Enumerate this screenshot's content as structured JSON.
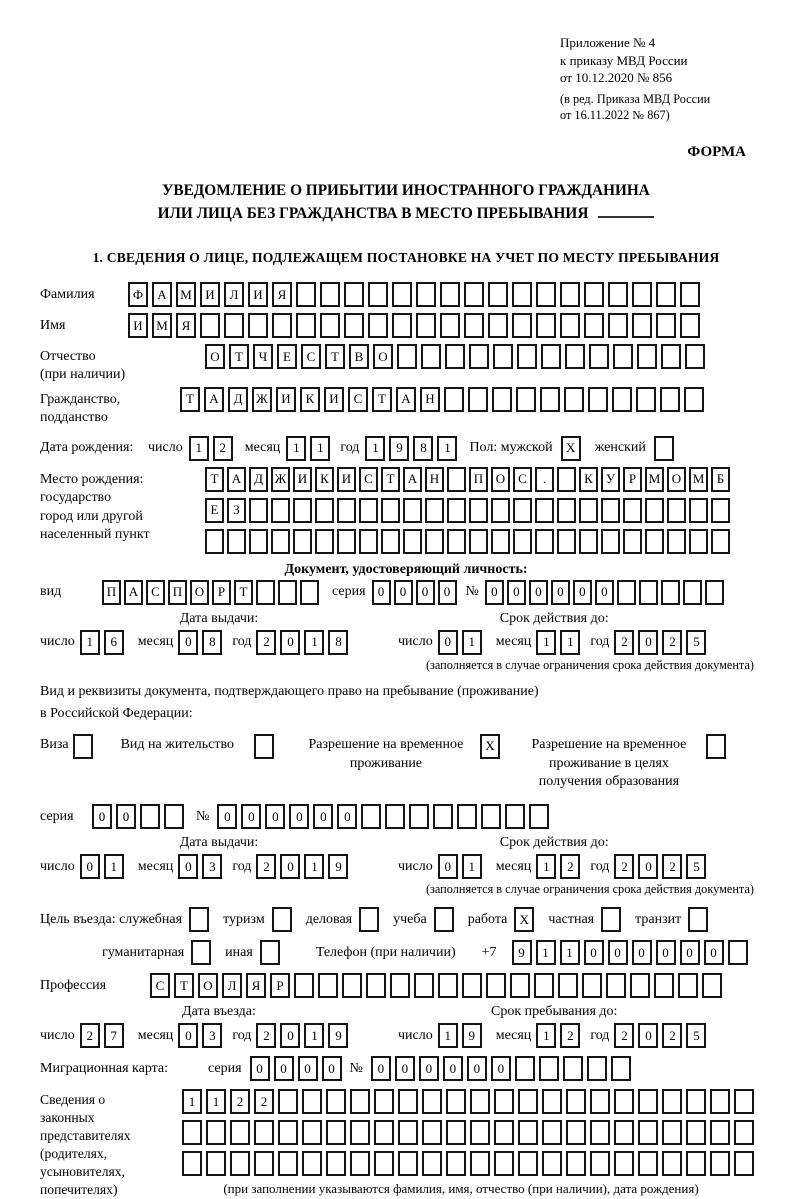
{
  "meta": {
    "annex1": "Приложение № 4",
    "annex2": "к приказу МВД России",
    "annex3": "от 10.12.2020 № 856",
    "note1": "(в ред. Приказа МВД России",
    "note2": "от 16.11.2022 № 867)",
    "forma": "ФОРМА",
    "title1": "УВЕДОМЛЕНИЕ О ПРИБЫТИИ ИНОСТРАННОГО ГРАЖДАНИНА",
    "title2": "ИЛИ ЛИЦА БЕЗ ГРАЖДАНСТВА В МЕСТО ПРЕБЫВАНИЯ",
    "section1": "1. СВЕДЕНИЯ О ЛИЦЕ, ПОДЛЕЖАЩЕМ ПОСТАНОВКЕ НА УЧЕТ ПО МЕСТУ ПРЕБЫВАНИЯ"
  },
  "labels": {
    "surname": "Фамилия",
    "name": "Имя",
    "patronymic_l1": "Отчество",
    "patronymic_l2": "(при наличии)",
    "citizenship_l1": "Гражданство,",
    "citizenship_l2": "подданство",
    "birth_date": "Дата рождения:",
    "day": "число",
    "month": "месяц",
    "year": "год",
    "sex": "Пол: мужской",
    "female": "женский",
    "birthplace_l1": "Место рождения:",
    "birthplace_l2": "государство",
    "birthplace_l3": "город или другой",
    "birthplace_l4": "населенный пункт",
    "id_doc_header": "Документ, удостоверяющий личность:",
    "doc_type": "вид",
    "series": "серия",
    "number": "№",
    "issue_date": "Дата выдачи:",
    "valid_until": "Срок действия до:",
    "limited_note": "(заполняется в случае ограничения срока действия документа)",
    "res_doc_l1": "Вид и реквизиты документа, подтверждающего право на пребывание (проживание)",
    "res_doc_l2": "в Российской Федерации:",
    "visa": "Виза",
    "residence_permit": "Вид на жительство",
    "rvp_l1": "Разрешение на временное",
    "rvp_l2": "проживание",
    "rvp_edu_l1": "Разрешение на временное",
    "rvp_edu_l2": "проживание в целях",
    "rvp_edu_l3": "получения образования",
    "purpose": "Цель въезда: служебная",
    "tourism": "туризм",
    "business": "деловая",
    "study": "учеба",
    "work": "работа",
    "private": "частная",
    "transit": "транзит",
    "humanitarian": "гуманитарная",
    "other": "иная",
    "phone": "Телефон (при наличии)",
    "phone_code": "+7",
    "profession": "Профессия",
    "entry_date": "Дата въезда:",
    "stay_until": "Срок пребывания до:",
    "migration_card": "Миграционная карта:",
    "rep_l1": "Сведения о",
    "rep_l2": "законных",
    "rep_l3": "представителях",
    "rep_l4": "(родителях,",
    "rep_l5": "усыновителях,",
    "rep_l6": "попечителях)",
    "rep_note": "(при заполнении указываются фамилия, имя, отчество (при наличии), дата рождения)"
  },
  "rows": {
    "surname": {
      "chars": "ФАМИЛИЯ",
      "len": 24
    },
    "name": {
      "chars": "ИМЯ",
      "len": 24
    },
    "patronymic": {
      "chars": "ОТЧЕСТВО",
      "len": 21
    },
    "citizenship": {
      "chars": "ТАДЖИКИСТАН",
      "len": 22
    },
    "birth": {
      "day": {
        "chars": "12",
        "len": 2
      },
      "month": {
        "chars": "11",
        "len": 2
      },
      "year": {
        "chars": "1981",
        "len": 4
      }
    },
    "sex_male": {
      "chars": "X",
      "len": 1
    },
    "sex_female": {
      "chars": "",
      "len": 1
    },
    "birthplace_line1": {
      "chars": "ТАДЖИКИСТАН ПОС. КУРМОМБ",
      "len": 24
    },
    "birthplace_line2": {
      "chars": "ЕЗ",
      "len": 24
    },
    "birthplace_line3": {
      "chars": "",
      "len": 24
    },
    "doc_type": {
      "chars": "ПАСПОРТ",
      "len": 10
    },
    "doc_series": {
      "chars": "0000",
      "len": 4
    },
    "doc_number": {
      "chars": "000000",
      "len": 11
    },
    "doc_issue": {
      "day": {
        "chars": "16",
        "len": 2
      },
      "month": {
        "chars": "08",
        "len": 2
      },
      "year": {
        "chars": "2018",
        "len": 4
      }
    },
    "doc_valid": {
      "day": {
        "chars": "01",
        "len": 2
      },
      "month": {
        "chars": "11",
        "len": 2
      },
      "year": {
        "chars": "2025",
        "len": 4
      }
    },
    "cb_visa": {
      "chars": "",
      "len": 1
    },
    "cb_vnzh": {
      "chars": "",
      "len": 1
    },
    "cb_rvp": {
      "chars": "X",
      "len": 1
    },
    "cb_rvp_edu": {
      "chars": "",
      "len": 1
    },
    "res_series": {
      "chars": "00",
      "len": 4
    },
    "res_number": {
      "chars": "000000",
      "len": 14
    },
    "res_issue": {
      "day": {
        "chars": "01",
        "len": 2
      },
      "month": {
        "chars": "03",
        "len": 2
      },
      "year": {
        "chars": "2019",
        "len": 4
      }
    },
    "res_valid": {
      "day": {
        "chars": "01",
        "len": 2
      },
      "month": {
        "chars": "12",
        "len": 2
      },
      "year": {
        "chars": "2025",
        "len": 4
      }
    },
    "cb_official": {
      "chars": "",
      "len": 1
    },
    "cb_tourism": {
      "chars": "",
      "len": 1
    },
    "cb_business": {
      "chars": "",
      "len": 1
    },
    "cb_study": {
      "chars": "",
      "len": 1
    },
    "cb_work": {
      "chars": "X",
      "len": 1
    },
    "cb_private": {
      "chars": "",
      "len": 1
    },
    "cb_transit": {
      "chars": "",
      "len": 1
    },
    "cb_humanitarian": {
      "chars": "",
      "len": 1
    },
    "cb_other": {
      "chars": "",
      "len": 1
    },
    "phone": {
      "chars": "911000000",
      "len": 10
    },
    "profession": {
      "chars": "СТОЛЯР",
      "len": 24
    },
    "entry": {
      "day": {
        "chars": "27",
        "len": 2
      },
      "month": {
        "chars": "03",
        "len": 2
      },
      "year": {
        "chars": "2019",
        "len": 4
      }
    },
    "stay": {
      "day": {
        "chars": "19",
        "len": 2
      },
      "month": {
        "chars": "12",
        "len": 2
      },
      "year": {
        "chars": "2025",
        "len": 4
      }
    },
    "mig_series": {
      "chars": "0000",
      "len": 4
    },
    "mig_number": {
      "chars": "000000",
      "len": 11
    },
    "rep_line1": {
      "chars": "1122",
      "len": 24
    },
    "rep_line2": {
      "chars": "",
      "len": 24
    },
    "rep_line3": {
      "chars": "",
      "len": 24
    }
  }
}
